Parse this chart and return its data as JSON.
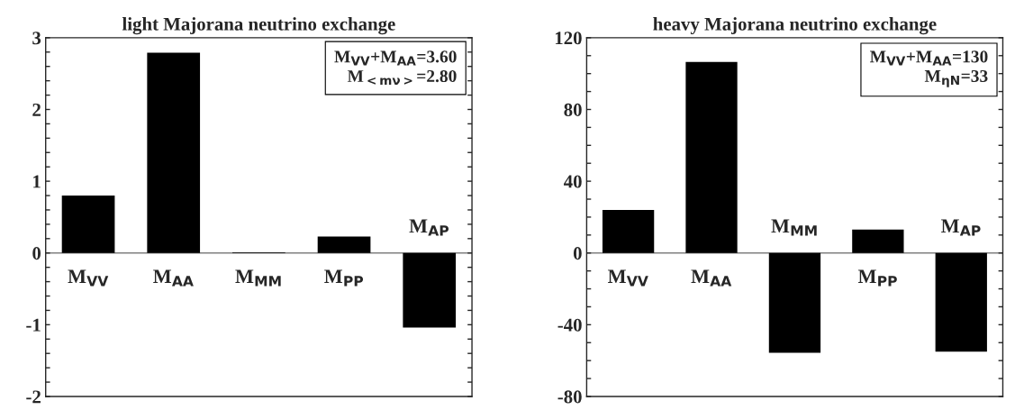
{
  "chart_data": [
    {
      "type": "bar",
      "title": "light Majorana neutrino exchange",
      "categories": [
        "M$_{VV}$",
        "M$_{AA}$",
        "M$_{MM}$",
        "M$_{PP}$",
        "M$_{AP}$"
      ],
      "values": [
        0.8,
        2.79,
        0.01,
        0.23,
        -1.04
      ],
      "color": "#000000",
      "ylim": [
        -2,
        3
      ],
      "yticks": [
        -2,
        {
          "value": -1.8,
          "label": null
        },
        {
          "value": -1.6,
          "label": null
        },
        {
          "value": -1.4,
          "label": null
        },
        {
          "value": -1.2,
          "label": null
        },
        -1,
        {
          "value": -0.8,
          "label": null
        },
        {
          "value": -0.6,
          "label": null
        },
        {
          "value": -0.4,
          "label": null
        },
        {
          "value": -0.2,
          "label": null
        },
        0,
        {
          "value": 0.2,
          "label": null
        },
        {
          "value": 0.4,
          "label": null
        },
        {
          "value": 0.6,
          "label": null
        },
        {
          "value": 0.8,
          "label": null
        },
        1,
        {
          "value": 1.2,
          "label": null
        },
        {
          "value": 1.4,
          "label": null
        },
        {
          "value": 1.6,
          "label": null
        },
        {
          "value": 1.8,
          "label": null
        },
        2,
        {
          "value": 2.2,
          "label": null
        },
        {
          "value": 2.4,
          "label": null
        },
        {
          "value": 2.6,
          "label": null
        },
        {
          "value": 2.8,
          "label": null
        },
        3
      ],
      "ref_lines": [
        {
          "axis": "y",
          "value": 0,
          "color": "#808080"
        }
      ],
      "tick_labels": "y",
      "annotations": [
        "M$_{VV}$+M$_{AA}$=3.60",
        "M$_{<mν>}$=2.80"
      ]
    },
    {
      "type": "bar",
      "title": "heavy Majorana neutrino exchange",
      "categories": [
        "M$_{VV}$",
        "M$_{AA}$",
        "M$_{MM}$",
        "M$_{PP}$",
        "M$_{AP}$"
      ],
      "values": [
        24,
        106.5,
        -55.7,
        13,
        -55
      ],
      "color": "#000000",
      "ylim": [
        -80,
        120
      ],
      "yticks": [
        -80,
        {
          "value": -70,
          "label": null
        },
        {
          "value": -60,
          "label": null
        },
        {
          "value": -50,
          "label": null
        },
        -40,
        {
          "value": -30,
          "label": null
        },
        {
          "value": -20,
          "label": null
        },
        {
          "value": -10,
          "label": null
        },
        0,
        {
          "value": 10,
          "label": null
        },
        {
          "value": 20,
          "label": null
        },
        {
          "value": 30,
          "label": null
        },
        40,
        {
          "value": 50,
          "label": null
        },
        {
          "value": 60,
          "label": null
        },
        {
          "value": 70,
          "label": null
        },
        80,
        {
          "value": 90,
          "label": null
        },
        {
          "value": 100,
          "label": null
        },
        {
          "value": 110,
          "label": null
        },
        120
      ],
      "ref_lines": [
        {
          "axis": "y",
          "value": 0,
          "color": "#808080"
        }
      ],
      "tick_labels": "y",
      "annotations": [
        "M$_{VV}$+M$_{AA}$=130",
        "M$_{ηN}$=33"
      ]
    }
  ]
}
